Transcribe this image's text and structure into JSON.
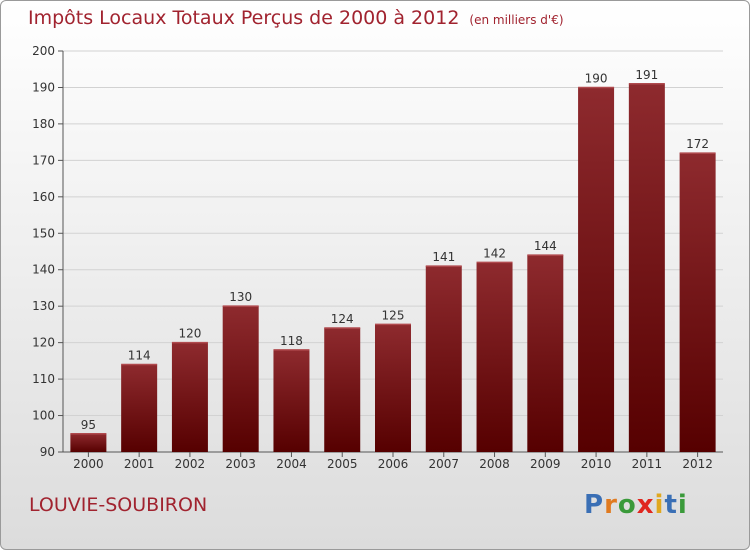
{
  "header": {
    "title": "Impôts Locaux Totaux Perçus de 2000 à 2012",
    "subtitle": "(en milliers d'€)"
  },
  "footer": {
    "place": "LOUVIE-SOUBIRON",
    "logo_text": "Proxiti",
    "logo_letters": [
      {
        "ch": "P",
        "color": "#3a6fb5"
      },
      {
        "ch": "r",
        "color": "#e07a1f"
      },
      {
        "ch": "o",
        "color": "#3a9a3a"
      },
      {
        "ch": "x",
        "color": "#e0271f"
      },
      {
        "ch": "i",
        "color": "#e0a81f"
      },
      {
        "ch": "t",
        "color": "#3a6fb5"
      },
      {
        "ch": "i",
        "color": "#3a9a3a"
      }
    ]
  },
  "colors": {
    "bar_top": "#8e2a2e",
    "bar_bottom": "#560000",
    "title": "#a1232f"
  },
  "chart_data": {
    "type": "bar",
    "title": "Impôts Locaux Totaux Perçus de 2000 à 2012",
    "xlabel": "",
    "ylabel": "",
    "categories": [
      "2000",
      "2001",
      "2002",
      "2003",
      "2004",
      "2005",
      "2006",
      "2007",
      "2008",
      "2009",
      "2010",
      "2011",
      "2012"
    ],
    "values": [
      95,
      114,
      120,
      130,
      118,
      124,
      125,
      141,
      142,
      144,
      190,
      191,
      172
    ],
    "ylim": [
      90,
      200
    ],
    "yticks": [
      90,
      100,
      110,
      120,
      130,
      140,
      150,
      160,
      170,
      180,
      190,
      200
    ],
    "grid": true
  }
}
